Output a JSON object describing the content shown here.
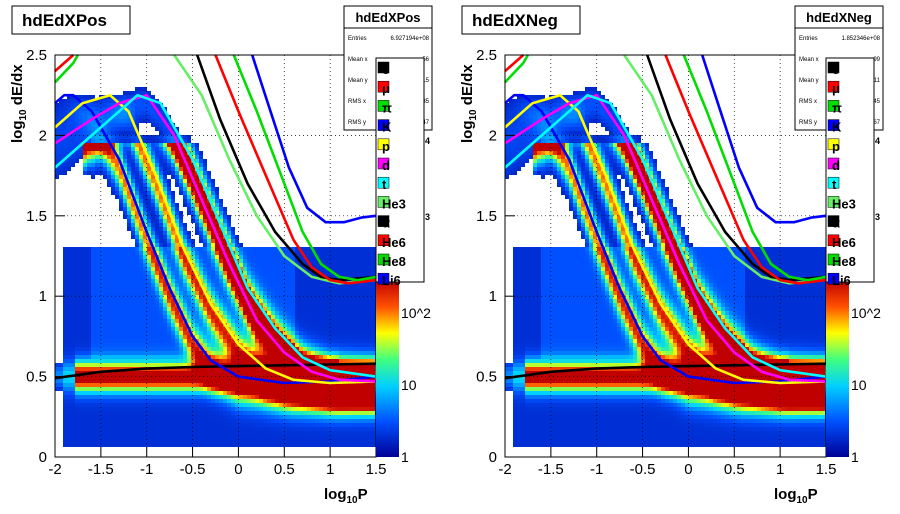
{
  "chart_data": [
    {
      "type": "heatmap",
      "title": "hdEdXPos",
      "xlabel": "log10P",
      "ylabel": "log10 dE/dx",
      "xlim": [
        -2,
        1.5
      ],
      "ylim": [
        0,
        2.5
      ],
      "x_ticks": [
        "-2",
        "-1.5",
        "-1",
        "-0.5",
        "0",
        "0.5",
        "1",
        "1.5"
      ],
      "y_ticks": [
        "0",
        "0.5",
        "1",
        "1.5",
        "2",
        "2.5"
      ],
      "grid": true,
      "z_scale": "log",
      "colorbar_ticks": [
        "1",
        "10",
        "10^2"
      ],
      "stats": {
        "name": "hdEdXPos",
        "rows": [
          {
            "label": "Entries",
            "value": "6.927194e+08"
          },
          {
            "label": "Mean x",
            "value": "…56"
          },
          {
            "label": "Mean y",
            "value": "…15"
          },
          {
            "label": "RMS x",
            "value": "…85"
          },
          {
            "label": "RMS y",
            "value": "…47"
          }
        ]
      },
      "legend_placement": "right",
      "side_fragments": [
        "4",
        "3"
      ],
      "series": [
        {
          "name": "e",
          "color": "#000000",
          "values": [
            [
              -2,
              0.49
            ],
            [
              -1.5,
              0.53
            ],
            [
              -1,
              0.55
            ],
            [
              -0.5,
              0.56
            ],
            [
              0,
              0.565
            ],
            [
              0.5,
              0.57
            ],
            [
              1,
              0.575
            ],
            [
              1.5,
              0.58
            ]
          ]
        },
        {
          "name": "μ",
          "color": "#ff0000",
          "values": [
            [
              -2,
              2.4
            ],
            [
              -1.8,
              2.5
            ]
          ]
        },
        {
          "name": "π",
          "color": "#00dd00",
          "values": [
            [
              -2,
              2.33
            ],
            [
              -1.8,
              2.45
            ],
            [
              -1.75,
              2.5
            ]
          ]
        },
        {
          "name": "K",
          "color": "#0000ff",
          "values": [
            [
              -2,
              2.2
            ],
            [
              -1.9,
              2.25
            ],
            [
              -1.8,
              2.25
            ],
            [
              -1.6,
              2.15
            ],
            [
              -1.3,
              1.85
            ],
            [
              -1,
              1.4
            ],
            [
              -0.75,
              1.05
            ],
            [
              -0.5,
              0.75
            ],
            [
              -0.3,
              0.6
            ],
            [
              0,
              0.5
            ],
            [
              0.5,
              0.46
            ],
            [
              1,
              0.47
            ],
            [
              1.5,
              0.5
            ]
          ]
        },
        {
          "name": "p",
          "color": "#ffff00",
          "values": [
            [
              -2,
              2.05
            ],
            [
              -1.7,
              2.2
            ],
            [
              -1.4,
              2.25
            ],
            [
              -1.2,
              2.15
            ],
            [
              -0.9,
              1.75
            ],
            [
              -0.6,
              1.3
            ],
            [
              -0.3,
              0.95
            ],
            [
              0,
              0.7
            ],
            [
              0.3,
              0.55
            ],
            [
              0.6,
              0.48
            ],
            [
              1,
              0.46
            ],
            [
              1.5,
              0.47
            ]
          ]
        },
        {
          "name": "d",
          "color": "#ff00ff",
          "values": [
            [
              -2,
              1.95
            ],
            [
              -1.6,
              2.1
            ],
            [
              -1.3,
              2.2
            ],
            [
              -1,
              2.25
            ],
            [
              -0.7,
              2.0
            ],
            [
              -0.4,
              1.6
            ],
            [
              -0.1,
              1.2
            ],
            [
              0.2,
              0.85
            ],
            [
              0.5,
              0.65
            ],
            [
              0.8,
              0.53
            ],
            [
              1.1,
              0.48
            ],
            [
              1.5,
              0.47
            ]
          ]
        },
        {
          "name": "t",
          "color": "#00ffff",
          "values": [
            [
              -2,
              1.8
            ],
            [
              -1.6,
              2.0
            ],
            [
              -1.3,
              2.15
            ],
            [
              -1.1,
              2.25
            ],
            [
              -0.85,
              2.2
            ],
            [
              -0.5,
              1.85
            ],
            [
              -0.2,
              1.45
            ],
            [
              0.1,
              1.05
            ],
            [
              0.4,
              0.8
            ],
            [
              0.7,
              0.62
            ],
            [
              1,
              0.54
            ],
            [
              1.5,
              0.5
            ]
          ]
        },
        {
          "name": "He3",
          "color": "#66ee66",
          "values": [
            [
              -0.7,
              2.5
            ],
            [
              -0.4,
              2.25
            ],
            [
              -0.1,
              1.85
            ],
            [
              0.2,
              1.5
            ],
            [
              0.5,
              1.25
            ],
            [
              0.8,
              1.12
            ],
            [
              1.1,
              1.08
            ],
            [
              1.5,
              1.1
            ]
          ]
        },
        {
          "name": "α",
          "color": "#000000",
          "values": [
            [
              -0.45,
              2.5
            ],
            [
              -0.2,
              2.1
            ],
            [
              0.1,
              1.7
            ],
            [
              0.4,
              1.4
            ],
            [
              0.7,
              1.2
            ],
            [
              0.9,
              1.12
            ],
            [
              1.1,
              1.1
            ],
            [
              1.5,
              1.12
            ]
          ]
        },
        {
          "name": "He6",
          "color": "#ff0000",
          "values": [
            [
              -0.25,
              2.5
            ],
            [
              0.0,
              2.15
            ],
            [
              0.3,
              1.75
            ],
            [
              0.6,
              1.35
            ],
            [
              0.8,
              1.18
            ],
            [
              1.0,
              1.1
            ],
            [
              1.2,
              1.08
            ],
            [
              1.5,
              1.1
            ]
          ]
        },
        {
          "name": "He8",
          "color": "#00dd00",
          "values": [
            [
              -0.05,
              2.5
            ],
            [
              0.2,
              2.15
            ],
            [
              0.5,
              1.7
            ],
            [
              0.7,
              1.4
            ],
            [
              0.9,
              1.2
            ],
            [
              1.1,
              1.12
            ],
            [
              1.3,
              1.1
            ],
            [
              1.5,
              1.12
            ]
          ]
        },
        {
          "name": "Li6",
          "color": "#0000ff",
          "values": [
            [
              0.15,
              2.5
            ],
            [
              0.35,
              2.15
            ],
            [
              0.55,
              1.8
            ],
            [
              0.75,
              1.55
            ],
            [
              0.95,
              1.46
            ],
            [
              1.15,
              1.46
            ],
            [
              1.35,
              1.49
            ],
            [
              1.5,
              1.5
            ]
          ]
        }
      ]
    },
    {
      "type": "heatmap",
      "title": "hdEdXNeg",
      "xlabel": "log10P",
      "ylabel": "log10 dE/dx",
      "xlim": [
        -2,
        1.5
      ],
      "ylim": [
        0,
        2.5
      ],
      "x_ticks": [
        "-2",
        "-1.5",
        "-1",
        "-0.5",
        "0",
        "0.5",
        "1",
        "1.5"
      ],
      "y_ticks": [
        "0",
        "0.5",
        "1",
        "1.5",
        "2",
        "2.5"
      ],
      "grid": true,
      "z_scale": "log",
      "colorbar_ticks": [
        "1",
        "10",
        "10^2"
      ],
      "stats": {
        "name": "hdEdXNeg",
        "rows": [
          {
            "label": "Entries",
            "value": "1.852346e+08"
          },
          {
            "label": "Mean x",
            "value": "…99"
          },
          {
            "label": "Mean y",
            "value": "…11"
          },
          {
            "label": "RMS x",
            "value": "…45"
          },
          {
            "label": "RMS y",
            "value": "…67"
          }
        ]
      },
      "legend_placement": "right",
      "side_fragments": [
        "4",
        "3"
      ],
      "series": [
        {
          "name": "e",
          "color": "#000000",
          "values": [
            [
              -2,
              0.49
            ],
            [
              -1.5,
              0.53
            ],
            [
              -1,
              0.55
            ],
            [
              -0.5,
              0.56
            ],
            [
              0,
              0.565
            ],
            [
              0.5,
              0.57
            ],
            [
              1,
              0.575
            ],
            [
              1.5,
              0.58
            ]
          ]
        },
        {
          "name": "μ",
          "color": "#ff0000",
          "values": [
            [
              -2,
              2.4
            ],
            [
              -1.8,
              2.5
            ]
          ]
        },
        {
          "name": "π",
          "color": "#00dd00",
          "values": [
            [
              -2,
              2.33
            ],
            [
              -1.8,
              2.45
            ],
            [
              -1.75,
              2.5
            ]
          ]
        },
        {
          "name": "K",
          "color": "#0000ff",
          "values": [
            [
              -2,
              2.2
            ],
            [
              -1.9,
              2.25
            ],
            [
              -1.8,
              2.25
            ],
            [
              -1.6,
              2.15
            ],
            [
              -1.3,
              1.85
            ],
            [
              -1,
              1.4
            ],
            [
              -0.75,
              1.05
            ],
            [
              -0.5,
              0.75
            ],
            [
              -0.3,
              0.6
            ],
            [
              0,
              0.5
            ],
            [
              0.5,
              0.46
            ],
            [
              1,
              0.47
            ],
            [
              1.5,
              0.5
            ]
          ]
        },
        {
          "name": "p",
          "color": "#ffff00",
          "values": [
            [
              -2,
              2.05
            ],
            [
              -1.7,
              2.2
            ],
            [
              -1.4,
              2.25
            ],
            [
              -1.2,
              2.15
            ],
            [
              -0.9,
              1.75
            ],
            [
              -0.6,
              1.3
            ],
            [
              -0.3,
              0.95
            ],
            [
              0,
              0.7
            ],
            [
              0.3,
              0.55
            ],
            [
              0.6,
              0.48
            ],
            [
              1,
              0.46
            ],
            [
              1.5,
              0.47
            ]
          ]
        },
        {
          "name": "d",
          "color": "#ff00ff",
          "values": [
            [
              -2,
              1.95
            ],
            [
              -1.6,
              2.1
            ],
            [
              -1.3,
              2.2
            ],
            [
              -1,
              2.25
            ],
            [
              -0.7,
              2.0
            ],
            [
              -0.4,
              1.6
            ],
            [
              -0.1,
              1.2
            ],
            [
              0.2,
              0.85
            ],
            [
              0.5,
              0.65
            ],
            [
              0.8,
              0.53
            ],
            [
              1.1,
              0.48
            ],
            [
              1.5,
              0.47
            ]
          ]
        },
        {
          "name": "t",
          "color": "#00ffff",
          "values": [
            [
              -2,
              1.8
            ],
            [
              -1.6,
              2.0
            ],
            [
              -1.3,
              2.15
            ],
            [
              -1.1,
              2.25
            ],
            [
              -0.85,
              2.2
            ],
            [
              -0.5,
              1.85
            ],
            [
              -0.2,
              1.45
            ],
            [
              0.1,
              1.05
            ],
            [
              0.4,
              0.8
            ],
            [
              0.7,
              0.62
            ],
            [
              1,
              0.54
            ],
            [
              1.5,
              0.5
            ]
          ]
        },
        {
          "name": "He3",
          "color": "#66ee66",
          "values": [
            [
              -0.7,
              2.5
            ],
            [
              -0.4,
              2.25
            ],
            [
              -0.1,
              1.85
            ],
            [
              0.2,
              1.5
            ],
            [
              0.5,
              1.25
            ],
            [
              0.8,
              1.12
            ],
            [
              1.1,
              1.08
            ],
            [
              1.5,
              1.1
            ]
          ]
        },
        {
          "name": "α",
          "color": "#000000",
          "values": [
            [
              -0.45,
              2.5
            ],
            [
              -0.2,
              2.1
            ],
            [
              0.1,
              1.7
            ],
            [
              0.4,
              1.4
            ],
            [
              0.7,
              1.2
            ],
            [
              0.9,
              1.12
            ],
            [
              1.1,
              1.1
            ],
            [
              1.5,
              1.12
            ]
          ]
        },
        {
          "name": "He6",
          "color": "#ff0000",
          "values": [
            [
              -0.25,
              2.5
            ],
            [
              0.0,
              2.15
            ],
            [
              0.3,
              1.75
            ],
            [
              0.6,
              1.35
            ],
            [
              0.8,
              1.18
            ],
            [
              1.0,
              1.1
            ],
            [
              1.2,
              1.08
            ],
            [
              1.5,
              1.1
            ]
          ]
        },
        {
          "name": "He8",
          "color": "#00dd00",
          "values": [
            [
              -0.05,
              2.5
            ],
            [
              0.2,
              2.15
            ],
            [
              0.5,
              1.7
            ],
            [
              0.7,
              1.4
            ],
            [
              0.9,
              1.2
            ],
            [
              1.1,
              1.12
            ],
            [
              1.3,
              1.1
            ],
            [
              1.5,
              1.12
            ]
          ]
        },
        {
          "name": "Li6",
          "color": "#0000ff",
          "values": [
            [
              0.15,
              2.5
            ],
            [
              0.35,
              2.15
            ],
            [
              0.55,
              1.8
            ],
            [
              0.75,
              1.55
            ],
            [
              0.95,
              1.46
            ],
            [
              1.15,
              1.46
            ],
            [
              1.35,
              1.49
            ],
            [
              1.5,
              1.5
            ]
          ]
        }
      ]
    }
  ]
}
